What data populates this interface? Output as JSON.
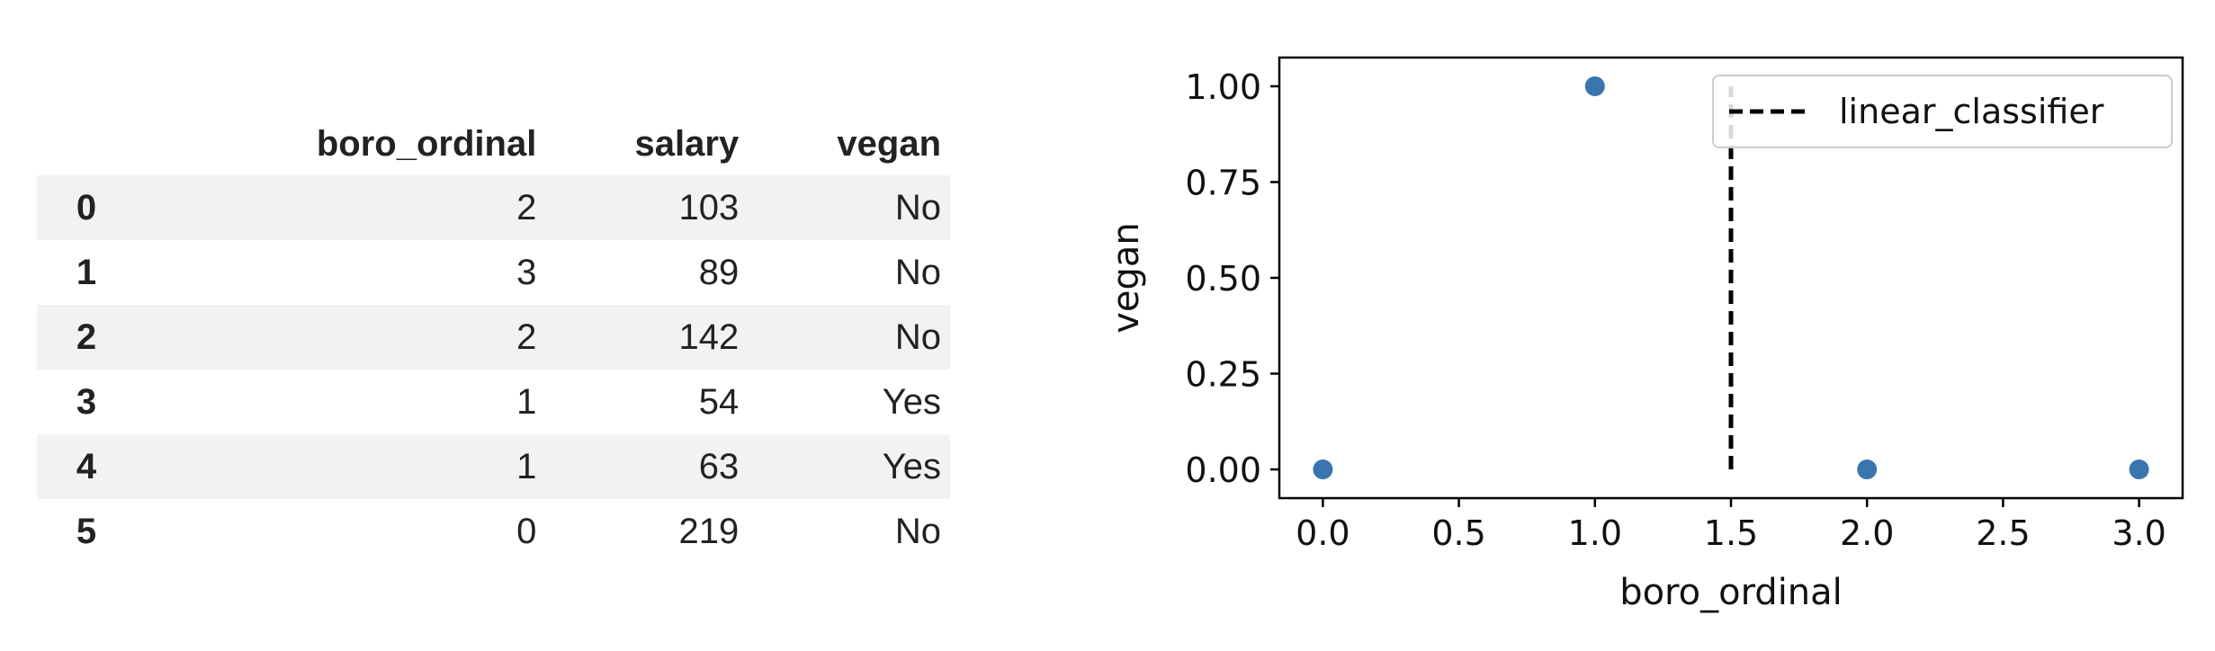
{
  "table": {
    "columns": [
      "",
      "boro_ordinal",
      "salary",
      "vegan"
    ],
    "rows": [
      {
        "index": "0",
        "boro_ordinal": "2",
        "salary": "103",
        "vegan": "No"
      },
      {
        "index": "1",
        "boro_ordinal": "3",
        "salary": "89",
        "vegan": "No"
      },
      {
        "index": "2",
        "boro_ordinal": "2",
        "salary": "142",
        "vegan": "No"
      },
      {
        "index": "3",
        "boro_ordinal": "1",
        "salary": "54",
        "vegan": "Yes"
      },
      {
        "index": "4",
        "boro_ordinal": "1",
        "salary": "63",
        "vegan": "Yes"
      },
      {
        "index": "5",
        "boro_ordinal": "0",
        "salary": "219",
        "vegan": "No"
      }
    ]
  },
  "chart_data": {
    "type": "scatter",
    "xlabel": "boro_ordinal",
    "ylabel": "vegan",
    "xlim": [
      -0.16,
      3.16
    ],
    "ylim": [
      -0.075,
      1.075
    ],
    "xticks": [
      0.0,
      0.5,
      1.0,
      1.5,
      2.0,
      2.5,
      3.0
    ],
    "xtick_labels": [
      "0.0",
      "0.5",
      "1.0",
      "1.5",
      "2.0",
      "2.5",
      "3.0"
    ],
    "yticks": [
      0.0,
      0.25,
      0.5,
      0.75,
      1.0
    ],
    "ytick_labels": [
      "0.00",
      "0.25",
      "0.50",
      "0.75",
      "1.00"
    ],
    "grid": false,
    "series": [
      {
        "kind": "scatter",
        "color": "#3a75b0",
        "x": [
          0,
          1,
          2,
          3
        ],
        "y": [
          0,
          1,
          0,
          0
        ]
      },
      {
        "kind": "line",
        "name": "linear_classifier",
        "color": "#000000",
        "linestyle": "dashed",
        "x": [
          1.5,
          1.5
        ],
        "y": [
          0,
          1
        ]
      }
    ],
    "legend": {
      "position": "top-right",
      "entries": [
        "linear_classifier"
      ]
    }
  }
}
